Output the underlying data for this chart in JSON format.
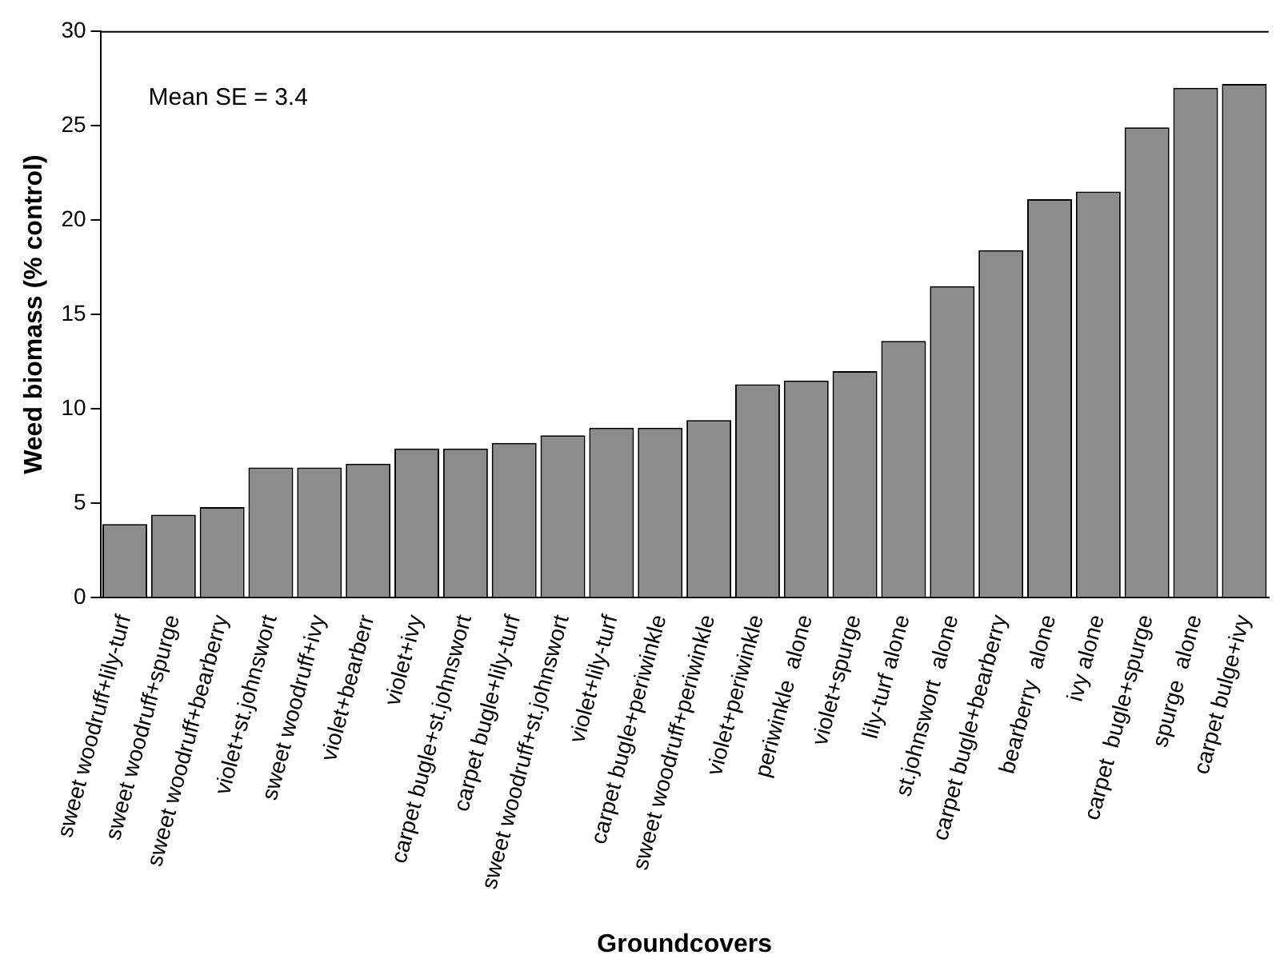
{
  "chart_data": {
    "type": "bar",
    "xlabel": "Groundcovers",
    "ylabel": "Weed biomass (% control)",
    "categories": [
      "sweet woodruff+lily-turf",
      "sweet woodruff+spurge",
      "sweet woodruff+bearberry",
      "violet+st.johnswort",
      "sweet woodruff+ivy",
      "violet+bearberr",
      "violet+ivy",
      "carpet bugle+st.johnswort",
      "carpet bugle+lily-turf",
      "sweet woodruff+st.johnswort",
      "violet+lily-turf",
      "carpet bugle+periwinkle",
      "sweet woodruff+periwinkle",
      "violet+periwinkle",
      "periwinkle  alone",
      "violet+spurge",
      "lily-turf alone",
      "st.johnswort  alone",
      "carpet bugle+bearberry",
      "bearberry  alone",
      "ivy alone",
      "carpet  bugle+spurge",
      "spurge  alone",
      "carpet bulge+ivy"
    ],
    "values": [
      3.9,
      4.4,
      4.8,
      6.9,
      6.9,
      7.1,
      7.9,
      7.9,
      8.2,
      8.6,
      9.0,
      9.0,
      9.4,
      11.3,
      11.5,
      12.0,
      13.6,
      16.5,
      18.4,
      21.1,
      21.5,
      24.9,
      27.0,
      27.2
    ],
    "color": "#8c8c8c",
    "ylim": [
      0,
      30
    ],
    "yticks": [
      0,
      5,
      10,
      15,
      20,
      25,
      30
    ],
    "grid": false,
    "legend": false,
    "annotations": [
      "Mean SE = 3.4"
    ]
  }
}
